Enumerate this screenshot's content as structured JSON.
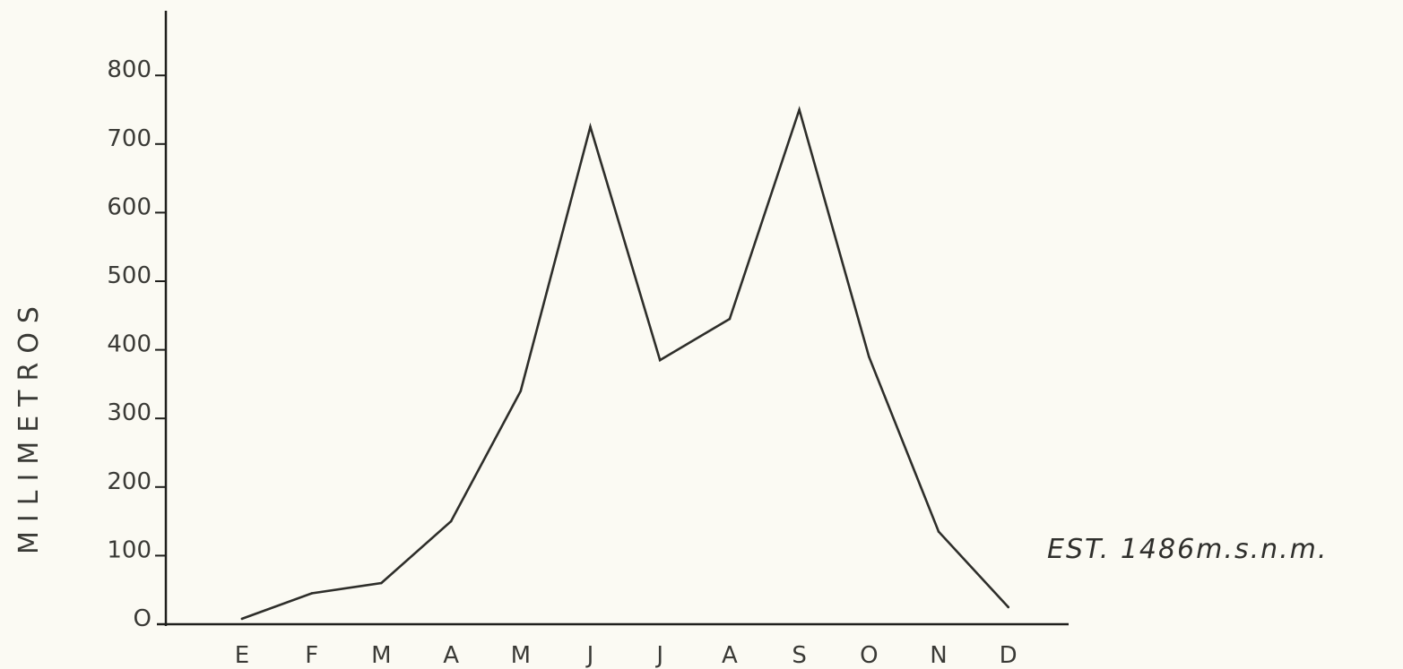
{
  "chart_data": {
    "type": "line",
    "title": "",
    "xlabel": "",
    "ylabel": "MILIMETROS",
    "categories": [
      "E",
      "F",
      "M",
      "A",
      "M",
      "J",
      "J",
      "A",
      "S",
      "O",
      "N",
      "D"
    ],
    "series": [
      {
        "values": [
          8,
          45,
          60,
          150,
          340,
          725,
          385,
          445,
          750,
          390,
          135,
          25
        ]
      }
    ],
    "yticks": [
      0,
      100,
      200,
      300,
      400,
      500,
      600,
      700,
      800
    ],
    "ytick_labels": [
      "O",
      "100",
      "200",
      "300",
      "400",
      "500",
      "600",
      "700",
      "800"
    ],
    "ylim": [
      0,
      800
    ],
    "grid": false,
    "legend": "none",
    "annotations": [
      "EST. 1486m.s.n.m."
    ],
    "colors": {
      "background": "#fbfaf3",
      "line": "#2e2e2a",
      "axis": "#1f1f1c",
      "text": "#3a3a36"
    }
  }
}
